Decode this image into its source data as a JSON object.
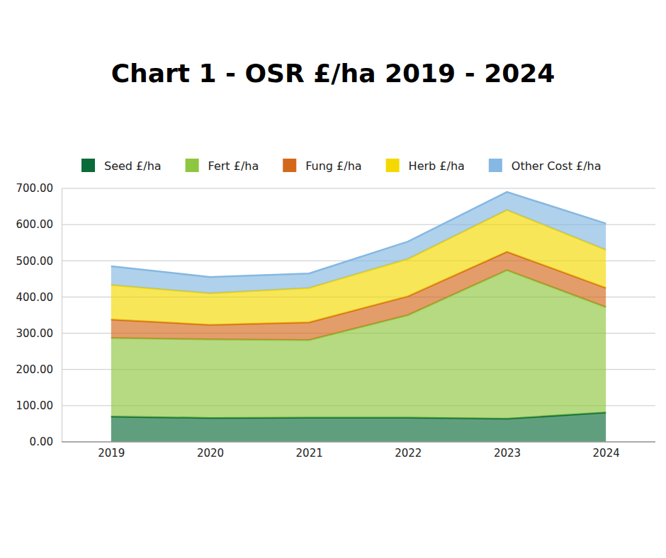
{
  "chart_data": {
    "type": "area",
    "title": "Chart 1 - OSR £/ha 2019 - 2024",
    "categories": [
      "2019",
      "2020",
      "2021",
      "2022",
      "2023",
      "2024"
    ],
    "series": [
      {
        "name": "Seed £/ha",
        "color": "#0b6b38",
        "values": [
          70,
          66,
          67,
          67,
          64,
          81
        ]
      },
      {
        "name": "Fert £/ha",
        "color": "#8dc63f",
        "values": [
          217,
          217,
          214,
          283,
          410,
          291
        ]
      },
      {
        "name": "Fung £/ha",
        "color": "#d4681a",
        "values": [
          51,
          40,
          49,
          52,
          51,
          53
        ]
      },
      {
        "name": "Herb £/ha",
        "color": "#f5d800",
        "values": [
          95,
          87,
          95,
          103,
          115,
          105
        ]
      },
      {
        "name": "Other Cost £/ha",
        "color": "#85b8e2",
        "values": [
          52,
          45,
          40,
          48,
          50,
          73
        ]
      }
    ],
    "stacked": true,
    "ylim": [
      0,
      700
    ],
    "yticks": [
      {
        "value": 0,
        "label": "0.00"
      },
      {
        "value": 100,
        "label": "100.00"
      },
      {
        "value": 200,
        "label": "200.00"
      },
      {
        "value": 300,
        "label": "300.00"
      },
      {
        "value": 400,
        "label": "400.00"
      },
      {
        "value": 500,
        "label": "500.00"
      },
      {
        "value": 600,
        "label": "600.00"
      },
      {
        "value": 700,
        "label": "700.00"
      }
    ],
    "grid": true,
    "legend": "top"
  }
}
